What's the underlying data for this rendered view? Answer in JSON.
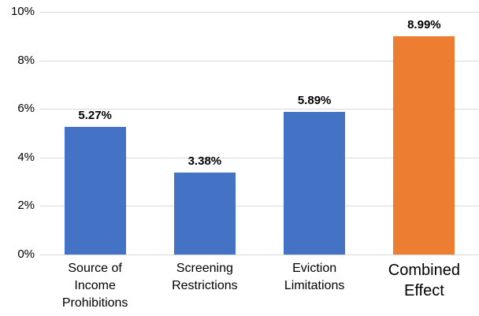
{
  "chart_data": {
    "type": "bar",
    "title": "",
    "xlabel": "",
    "ylabel": "",
    "categories": [
      [
        "Source of",
        "Income",
        "Prohibitions"
      ],
      [
        "Screening",
        "Restrictions"
      ],
      [
        "Eviction",
        "Limitations"
      ],
      [
        "Combined",
        "Effect"
      ]
    ],
    "values": [
      5.27,
      3.38,
      5.89,
      8.99
    ],
    "value_labels": [
      "5.27%",
      "3.38%",
      "5.89%",
      "8.99%"
    ],
    "ylim": [
      0,
      10
    ],
    "yticks": [
      0,
      2,
      4,
      6,
      8,
      10
    ],
    "ytick_labels": [
      "0%",
      "2%",
      "4%",
      "6%",
      "8%",
      "10%"
    ],
    "grid": true,
    "legend": false,
    "highlight_index": 3,
    "bar_colors": [
      "#4472C4",
      "#4472C4",
      "#4472C4",
      "#ED7D31"
    ],
    "gridline_color": "#D9D9D9",
    "axis_line_color": "#D9D9D9",
    "text_color": "#000000"
  }
}
